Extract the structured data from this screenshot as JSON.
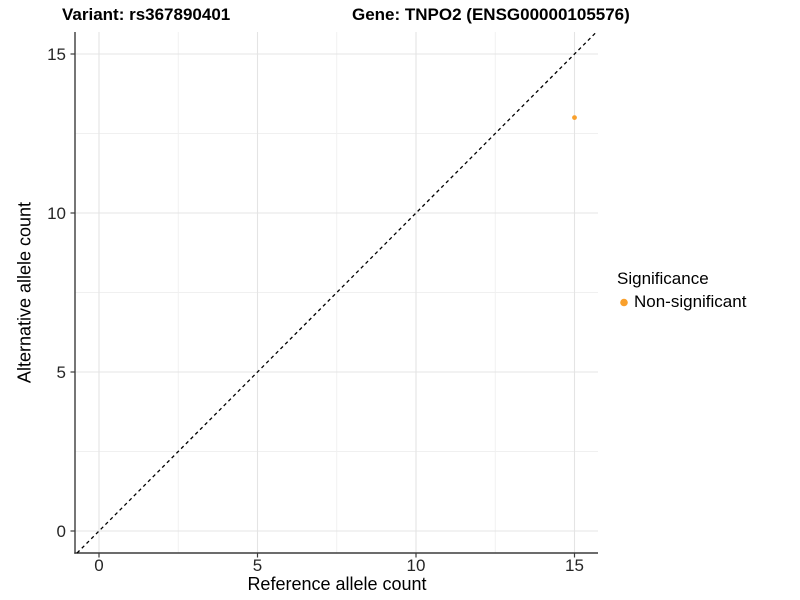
{
  "titles": {
    "variant": "Variant: rs367890401",
    "gene": "Gene: TNPO2 (ENSG00000105576)"
  },
  "chart_data": {
    "type": "scatter",
    "xlabel": "Reference allele count",
    "ylabel": "Alternative allele count",
    "xlim": [
      0,
      15
    ],
    "ylim": [
      0,
      15
    ],
    "x_ticks": [
      0,
      5,
      10,
      15
    ],
    "y_ticks": [
      0,
      5,
      10,
      15
    ],
    "x_minor_ticks": [
      2.5,
      7.5,
      12.5
    ],
    "y_minor_ticks": [
      2.5,
      7.5,
      12.5
    ],
    "grid": true,
    "identity_line": {
      "style": "dashed",
      "color": "#000000"
    },
    "series": [
      {
        "name": "Non-significant",
        "color": "#F9A02C",
        "points": [
          {
            "x": 15,
            "y": 13
          }
        ]
      }
    ],
    "legend": {
      "title": "Significance",
      "position": "right",
      "items": [
        {
          "label": "Non-significant",
          "color": "#F9A02C"
        }
      ]
    },
    "style": {
      "grid_major_color": "#E4E4E4",
      "grid_minor_color": "#F0F0F0",
      "axis_color": "#3C3C3C",
      "tick_label_color": "#262626",
      "background": "#FFFFFF"
    }
  }
}
